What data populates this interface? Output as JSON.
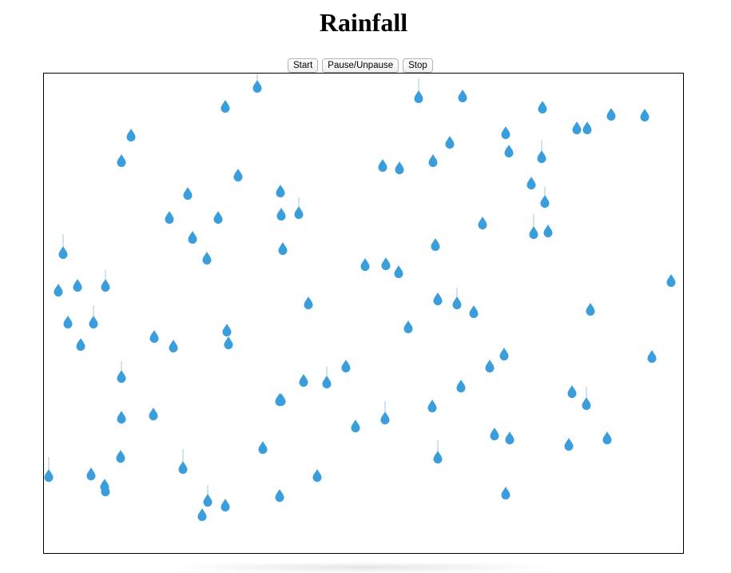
{
  "page": {
    "title": "Rainfall"
  },
  "controls": {
    "start_label": "Start",
    "pause_label": "Pause/Unpause",
    "stop_label": "Stop"
  },
  "colors": {
    "drop": "#3a9ddc",
    "trail": "#9cc9e8",
    "border": "#000000"
  },
  "icons": {
    "drop": "raindrop-icon"
  }
}
